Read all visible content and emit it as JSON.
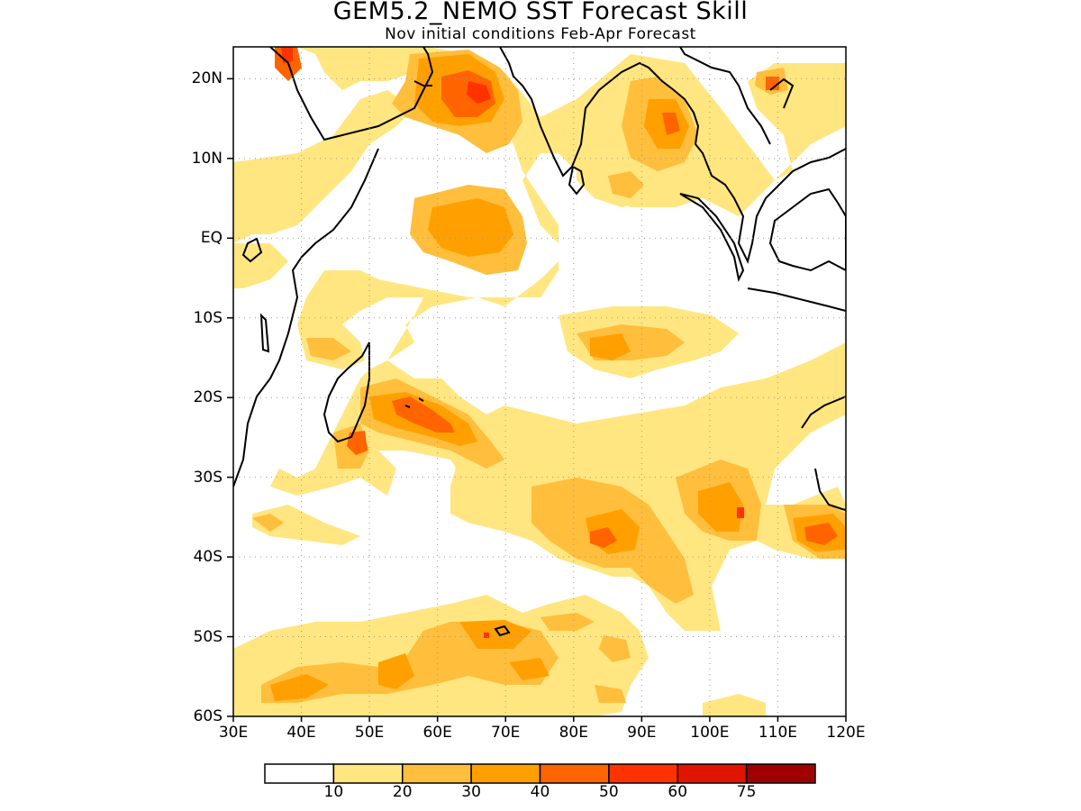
{
  "title": "GEM5.2_NEMO SST Forecast Skill",
  "subtitle": "Nov initial conditions  Feb-Apr Forecast",
  "map": {
    "lon_range": [
      30,
      120
    ],
    "lat_range": [
      -60,
      24
    ],
    "gridlines": "dotted",
    "y_ticks": [
      {
        "lat": 20,
        "label": "20N"
      },
      {
        "lat": 10,
        "label": "10N"
      },
      {
        "lat": 0,
        "label": "EQ"
      },
      {
        "lat": -10,
        "label": "10S"
      },
      {
        "lat": -20,
        "label": "20S"
      },
      {
        "lat": -30,
        "label": "30S"
      },
      {
        "lat": -40,
        "label": "40S"
      },
      {
        "lat": -50,
        "label": "50S"
      },
      {
        "lat": -60,
        "label": "60S"
      }
    ],
    "x_ticks": [
      {
        "lon": 30,
        "label": "30E"
      },
      {
        "lon": 40,
        "label": "40E"
      },
      {
        "lon": 50,
        "label": "50E"
      },
      {
        "lon": 60,
        "label": "60E"
      },
      {
        "lon": 70,
        "label": "70E"
      },
      {
        "lon": 80,
        "label": "80E"
      },
      {
        "lon": 90,
        "label": "90E"
      },
      {
        "lon": 100,
        "label": "100E"
      },
      {
        "lon": 110,
        "label": "110E"
      },
      {
        "lon": 120,
        "label": "120E"
      }
    ]
  },
  "colorbar": {
    "colors": [
      "#ffffff",
      "#ffe680",
      "#ffbe3c",
      "#ffa000",
      "#ff6400",
      "#ff3200",
      "#e11400",
      "#a00000"
    ],
    "labels": [
      "10",
      "20",
      "30",
      "40",
      "50",
      "60",
      "75"
    ]
  }
}
